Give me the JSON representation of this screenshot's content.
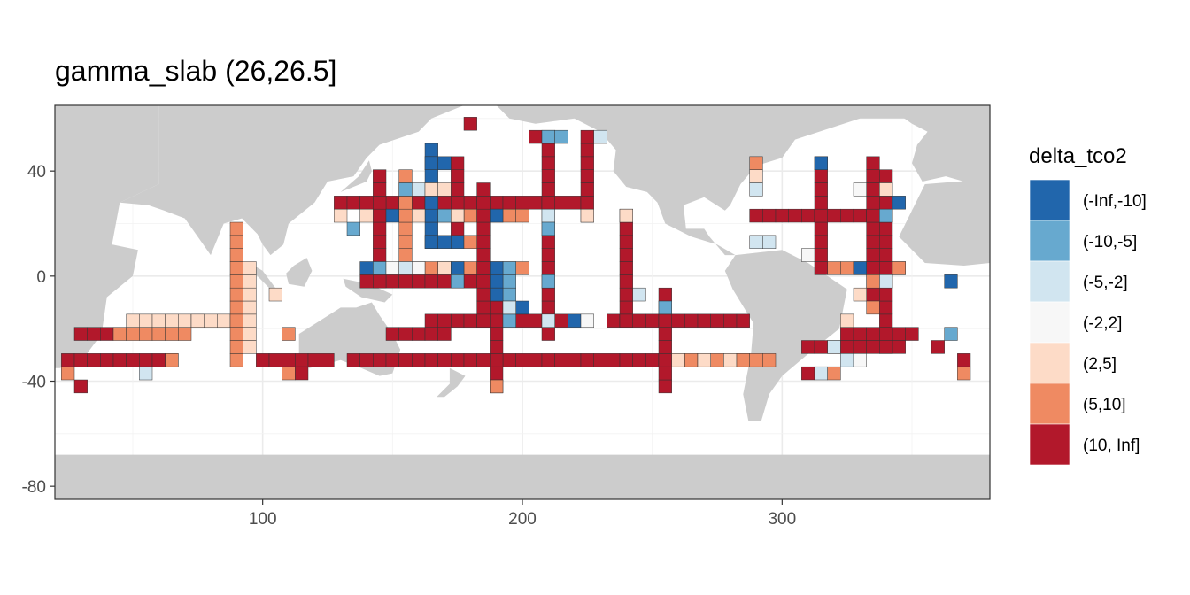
{
  "chart_data": {
    "type": "heatmap",
    "title": "gamma_slab (26,26.5]",
    "xlabel": "",
    "ylabel": "",
    "xlim": [
      20,
      380
    ],
    "ylim": [
      -85,
      65
    ],
    "x_ticks": [
      100,
      200,
      300
    ],
    "y_ticks": [
      -80,
      -40,
      0,
      40
    ],
    "grid": true,
    "cell_size": 5,
    "legend": {
      "title": "delta_tco2",
      "position": "right",
      "entries": [
        {
          "label": "(-Inf,-10]",
          "color": "#2166ac"
        },
        {
          "label": "(-10,-5]",
          "color": "#67a9cf"
        },
        {
          "label": "(-5,-2]",
          "color": "#d1e5f0"
        },
        {
          "label": "(-2,2]",
          "color": "#f7f7f7"
        },
        {
          "label": "(2,5]",
          "color": "#fddbc7"
        },
        {
          "label": "(5,10]",
          "color": "#ef8a62"
        },
        {
          "label": "(10, Inf]",
          "color": "#b2182b"
        }
      ]
    },
    "land_color": "#cccccc",
    "tracks": [
      {
        "lon": [
          25,
          65
        ],
        "lat": -32,
        "class": 6
      },
      {
        "lon": [
          30,
          40
        ],
        "lat": -22,
        "class": 6
      },
      {
        "lon": [
          45,
          70
        ],
        "lat": -22,
        "class": 5
      },
      {
        "lon": [
          50,
          85
        ],
        "lat": -17,
        "class": 4
      },
      {
        "lon": [
          100,
          125
        ],
        "lat": -32,
        "class": 6
      },
      {
        "lon": [
          135,
          255
        ],
        "lat": -32,
        "class": 6
      },
      {
        "lon": [
          150,
          170
        ],
        "lat": -22,
        "class": 6
      },
      {
        "lon": [
          165,
          215
        ],
        "lat": -17,
        "class": 6
      },
      {
        "lon": [
          235,
          285
        ],
        "lat": -17,
        "class": 6
      },
      {
        "lon": [
          255,
          295
        ],
        "lat": -32,
        "class": 5
      },
      {
        "lon": [
          130,
          220
        ],
        "lat": 28,
        "class": 6
      },
      {
        "lon": [
          170,
          200
        ],
        "lat": 23,
        "class": 5
      },
      {
        "lon": [
          160,
          200
        ],
        "lat": 3,
        "class": 5
      },
      {
        "lon": [
          140,
          180
        ],
        "lat": -2,
        "class": 6
      },
      {
        "lon": [
          290,
          340
        ],
        "lat": 23,
        "class": 6
      },
      {
        "lon": [
          320,
          345
        ],
        "lat": 3,
        "class": 5
      },
      {
        "lon": [
          325,
          345
        ],
        "lat": -22,
        "class": 6
      },
      {
        "lon": [
          310,
          345
        ],
        "lat": -27,
        "class": 6
      }
    ],
    "meridians": [
      {
        "lon": 90,
        "lat": [
          -32,
          18
        ],
        "class": 5
      },
      {
        "lon": 95,
        "lat": [
          -27,
          3
        ],
        "class": 4
      },
      {
        "lon": 145,
        "lat": [
          -2,
          38
        ],
        "class": 6
      },
      {
        "lon": 155,
        "lat": [
          8,
          38
        ],
        "class": 5
      },
      {
        "lon": 165,
        "lat": [
          13,
          48
        ],
        "class": 0
      },
      {
        "lon": 175,
        "lat": [
          18,
          43
        ],
        "class": 6
      },
      {
        "lon": 185,
        "lat": [
          -17,
          33
        ],
        "class": 6
      },
      {
        "lon": 190,
        "lat": [
          -42,
          -2
        ],
        "class": 6
      },
      {
        "lon": 195,
        "lat": [
          -17,
          3
        ],
        "class": 1
      },
      {
        "lon": 210,
        "lat": [
          -22,
          53
        ],
        "class": 6
      },
      {
        "lon": 225,
        "lat": [
          23,
          53
        ],
        "class": 6
      },
      {
        "lon": 240,
        "lat": [
          -17,
          23
        ],
        "class": 6
      },
      {
        "lon": 255,
        "lat": [
          -42,
          -7
        ],
        "class": 6
      },
      {
        "lon": 335,
        "lat": [
          -7,
          43
        ],
        "class": 6
      },
      {
        "lon": 315,
        "lat": [
          3,
          43
        ],
        "class": 6
      },
      {
        "lon": 340,
        "lat": [
          -27,
          38
        ],
        "class": 6
      }
    ],
    "cells": [
      {
        "lon": 180,
        "lat": 58,
        "class": 6
      },
      {
        "lon": 205,
        "lat": 53,
        "class": 6
      },
      {
        "lon": 210,
        "lat": 53,
        "class": 1
      },
      {
        "lon": 215,
        "lat": 53,
        "class": 1
      },
      {
        "lon": 230,
        "lat": 53,
        "class": 2
      },
      {
        "lon": 165,
        "lat": 43,
        "class": 0
      },
      {
        "lon": 170,
        "lat": 43,
        "class": 0
      },
      {
        "lon": 155,
        "lat": 33,
        "class": 1
      },
      {
        "lon": 160,
        "lat": 33,
        "class": 2
      },
      {
        "lon": 165,
        "lat": 33,
        "class": 4
      },
      {
        "lon": 170,
        "lat": 33,
        "class": 4
      },
      {
        "lon": 150,
        "lat": 23,
        "class": 0
      },
      {
        "lon": 160,
        "lat": 23,
        "class": 4
      },
      {
        "lon": 170,
        "lat": 23,
        "class": 1
      },
      {
        "lon": 175,
        "lat": 23,
        "class": 4
      },
      {
        "lon": 190,
        "lat": 23,
        "class": 0
      },
      {
        "lon": 130,
        "lat": 23,
        "class": 4
      },
      {
        "lon": 140,
        "lat": 23,
        "class": 4
      },
      {
        "lon": 135,
        "lat": 18,
        "class": 1
      },
      {
        "lon": 165,
        "lat": 13,
        "class": 0
      },
      {
        "lon": 170,
        "lat": 13,
        "class": 0
      },
      {
        "lon": 175,
        "lat": 13,
        "class": 0
      },
      {
        "lon": 180,
        "lat": 13,
        "class": 5
      },
      {
        "lon": 140,
        "lat": 3,
        "class": 0
      },
      {
        "lon": 145,
        "lat": 3,
        "class": 1
      },
      {
        "lon": 150,
        "lat": 3,
        "class": 3
      },
      {
        "lon": 155,
        "lat": 3,
        "class": 2
      },
      {
        "lon": 160,
        "lat": 3,
        "class": 3
      },
      {
        "lon": 170,
        "lat": 3,
        "class": 4
      },
      {
        "lon": 175,
        "lat": 3,
        "class": 0
      },
      {
        "lon": 175,
        "lat": -2,
        "class": 1
      },
      {
        "lon": 190,
        "lat": 3,
        "class": 0
      },
      {
        "lon": 190,
        "lat": -2,
        "class": 0
      },
      {
        "lon": 190,
        "lat": -7,
        "class": 0
      },
      {
        "lon": 200,
        "lat": -12,
        "class": 0
      },
      {
        "lon": 195,
        "lat": -12,
        "class": 2
      },
      {
        "lon": 210,
        "lat": -2,
        "class": 1
      },
      {
        "lon": 210,
        "lat": 23,
        "class": 2
      },
      {
        "lon": 210,
        "lat": 18,
        "class": 1
      },
      {
        "lon": 220,
        "lat": -17,
        "class": 0
      },
      {
        "lon": 225,
        "lat": -17,
        "class": 3
      },
      {
        "lon": 210,
        "lat": -17,
        "class": 2
      },
      {
        "lon": 225,
        "lat": 23,
        "class": 4
      },
      {
        "lon": 240,
        "lat": 23,
        "class": 4
      },
      {
        "lon": 245,
        "lat": -7,
        "class": 2
      },
      {
        "lon": 255,
        "lat": -12,
        "class": 1
      },
      {
        "lon": 260,
        "lat": -32,
        "class": 4
      },
      {
        "lon": 270,
        "lat": -32,
        "class": 4
      },
      {
        "lon": 280,
        "lat": -32,
        "class": 4
      },
      {
        "lon": 285,
        "lat": -32,
        "class": 5
      },
      {
        "lon": 290,
        "lat": 43,
        "class": 5
      },
      {
        "lon": 290,
        "lat": 38,
        "class": 4
      },
      {
        "lon": 290,
        "lat": 33,
        "class": 2
      },
      {
        "lon": 290,
        "lat": 13,
        "class": 2
      },
      {
        "lon": 295,
        "lat": 13,
        "class": 2
      },
      {
        "lon": 310,
        "lat": 8,
        "class": 3
      },
      {
        "lon": 315,
        "lat": 43,
        "class": 0
      },
      {
        "lon": 330,
        "lat": 33,
        "class": 3
      },
      {
        "lon": 330,
        "lat": 3,
        "class": 0
      },
      {
        "lon": 340,
        "lat": 33,
        "class": 4
      },
      {
        "lon": 340,
        "lat": 23,
        "class": 1
      },
      {
        "lon": 345,
        "lat": 28,
        "class": 0
      },
      {
        "lon": 340,
        "lat": -2,
        "class": 2
      },
      {
        "lon": 335,
        "lat": -2,
        "class": 5
      },
      {
        "lon": 345,
        "lat": 3,
        "class": 5
      },
      {
        "lon": 365,
        "lat": -2,
        "class": 0
      },
      {
        "lon": 365,
        "lat": -22,
        "class": 1
      },
      {
        "lon": 360,
        "lat": -27,
        "class": 6
      },
      {
        "lon": 350,
        "lat": -22,
        "class": 6
      },
      {
        "lon": 370,
        "lat": -32,
        "class": 6
      },
      {
        "lon": 370,
        "lat": -37,
        "class": 5
      },
      {
        "lon": 55,
        "lat": -37,
        "class": 2
      },
      {
        "lon": 25,
        "lat": -37,
        "class": 5
      },
      {
        "lon": 30,
        "lat": -42,
        "class": 6
      },
      {
        "lon": 65,
        "lat": -32,
        "class": 5
      },
      {
        "lon": 115,
        "lat": -37,
        "class": 6
      },
      {
        "lon": 110,
        "lat": -37,
        "class": 5
      },
      {
        "lon": 75,
        "lat": -17,
        "class": 4
      },
      {
        "lon": 105,
        "lat": -7,
        "class": 4
      },
      {
        "lon": 110,
        "lat": -22,
        "class": 5
      },
      {
        "lon": 190,
        "lat": -42,
        "class": 5
      },
      {
        "lon": 310,
        "lat": -37,
        "class": 6
      },
      {
        "lon": 315,
        "lat": -37,
        "class": 2
      },
      {
        "lon": 320,
        "lat": -37,
        "class": 5
      },
      {
        "lon": 320,
        "lat": -27,
        "class": 2
      },
      {
        "lon": 325,
        "lat": -32,
        "class": 2
      },
      {
        "lon": 330,
        "lat": -32,
        "class": 3
      },
      {
        "lon": 325,
        "lat": -17,
        "class": 4
      },
      {
        "lon": 330,
        "lat": -7,
        "class": 4
      },
      {
        "lon": 335,
        "lat": -12,
        "class": 5
      }
    ]
  }
}
